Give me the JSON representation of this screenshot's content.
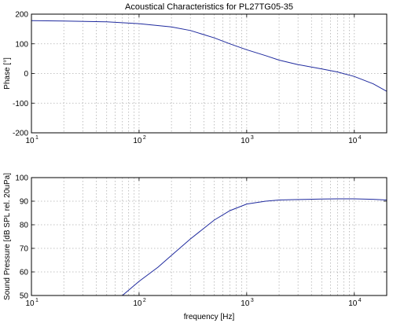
{
  "figure": {
    "title": "Acoustical Characteristics for PL27TG05-35",
    "series_color": "#1f2a9e",
    "grid_color": "#b0b0b0"
  },
  "chart_data": [
    {
      "type": "line",
      "title": "Acoustical Characteristics for PL27TG05-35",
      "xlabel": "",
      "ylabel": "Phase [°]",
      "xscale": "log",
      "xlim": [
        10,
        20000
      ],
      "ylim": [
        -200,
        200
      ],
      "yticks": [
        -200,
        -100,
        0,
        100,
        200
      ],
      "ytick_labels": [
        "-200",
        "-100",
        "0",
        "100",
        "200"
      ],
      "xticks": [
        10,
        100,
        1000,
        10000
      ],
      "xtick_labels": [
        {
          "base": "10",
          "exp": "1"
        },
        {
          "base": "10",
          "exp": "2"
        },
        {
          "base": "10",
          "exp": "3"
        },
        {
          "base": "10",
          "exp": "4"
        }
      ],
      "grid": true,
      "x": [
        10,
        20,
        50,
        100,
        200,
        300,
        500,
        700,
        1000,
        1500,
        2000,
        3000,
        5000,
        7000,
        10000,
        15000,
        20000
      ],
      "y": [
        178,
        177,
        174,
        168,
        157,
        145,
        120,
        100,
        80,
        60,
        45,
        30,
        15,
        5,
        -10,
        -35,
        -60
      ]
    },
    {
      "type": "line",
      "title": "",
      "xlabel": "frequency [Hz]",
      "ylabel": "Sound Pressure [dB SPL rel. 20uPa]",
      "xscale": "log",
      "xlim": [
        10,
        20000
      ],
      "ylim": [
        50,
        100
      ],
      "yticks": [
        50,
        60,
        70,
        80,
        90,
        100
      ],
      "ytick_labels": [
        "50",
        "60",
        "70",
        "80",
        "90",
        "100"
      ],
      "xticks": [
        10,
        100,
        1000,
        10000
      ],
      "xtick_labels": [
        {
          "base": "10",
          "exp": "1"
        },
        {
          "base": "10",
          "exp": "2"
        },
        {
          "base": "10",
          "exp": "3"
        },
        {
          "base": "10",
          "exp": "4"
        }
      ],
      "grid": true,
      "x": [
        70,
        100,
        150,
        200,
        300,
        500,
        700,
        1000,
        1500,
        2000,
        3000,
        5000,
        7000,
        10000,
        15000,
        20000
      ],
      "y": [
        50,
        56,
        62,
        67,
        74,
        82,
        86,
        88.8,
        90,
        90.5,
        90.7,
        90.9,
        91,
        91,
        90.8,
        90.5
      ]
    }
  ]
}
